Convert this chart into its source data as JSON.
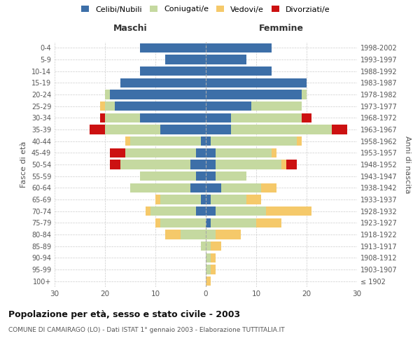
{
  "age_groups": [
    "100+",
    "95-99",
    "90-94",
    "85-89",
    "80-84",
    "75-79",
    "70-74",
    "65-69",
    "60-64",
    "55-59",
    "50-54",
    "45-49",
    "40-44",
    "35-39",
    "30-34",
    "25-29",
    "20-24",
    "15-19",
    "10-14",
    "5-9",
    "0-4"
  ],
  "birth_years": [
    "≤ 1902",
    "1903-1907",
    "1908-1912",
    "1913-1917",
    "1918-1922",
    "1923-1927",
    "1928-1932",
    "1933-1937",
    "1938-1942",
    "1943-1947",
    "1948-1952",
    "1953-1957",
    "1958-1962",
    "1963-1967",
    "1968-1972",
    "1973-1977",
    "1978-1982",
    "1983-1987",
    "1988-1992",
    "1993-1997",
    "1998-2002"
  ],
  "colors": {
    "celibi": "#3d6fa8",
    "coniugati": "#c5d9a0",
    "vedovi": "#f5c96a",
    "divorziati": "#cc1111"
  },
  "maschi": {
    "celibi": [
      0,
      0,
      0,
      0,
      0,
      0,
      2,
      1,
      3,
      2,
      3,
      2,
      1,
      9,
      13,
      18,
      19,
      17,
      13,
      8,
      13
    ],
    "coniugati": [
      0,
      0,
      0,
      1,
      5,
      9,
      9,
      8,
      12,
      11,
      14,
      14,
      14,
      11,
      7,
      2,
      1,
      0,
      0,
      0,
      0
    ],
    "vedovi": [
      0,
      0,
      0,
      0,
      3,
      1,
      1,
      1,
      0,
      0,
      0,
      0,
      1,
      0,
      0,
      1,
      0,
      0,
      0,
      0,
      0
    ],
    "divorziati": [
      0,
      0,
      0,
      0,
      0,
      0,
      0,
      0,
      0,
      0,
      2,
      3,
      0,
      3,
      1,
      0,
      0,
      0,
      0,
      0,
      0
    ]
  },
  "femmine": {
    "celibi": [
      0,
      0,
      0,
      0,
      0,
      1,
      2,
      1,
      3,
      2,
      2,
      2,
      1,
      5,
      5,
      9,
      19,
      20,
      13,
      8,
      13
    ],
    "coniugati": [
      0,
      1,
      1,
      1,
      2,
      9,
      10,
      7,
      8,
      6,
      13,
      11,
      17,
      20,
      14,
      10,
      1,
      0,
      0,
      0,
      0
    ],
    "vedovi": [
      1,
      1,
      1,
      2,
      5,
      5,
      9,
      3,
      3,
      0,
      1,
      1,
      1,
      0,
      0,
      0,
      0,
      0,
      0,
      0,
      0
    ],
    "divorziati": [
      0,
      0,
      0,
      0,
      0,
      0,
      0,
      0,
      0,
      0,
      2,
      0,
      0,
      3,
      2,
      0,
      0,
      0,
      0,
      0,
      0
    ]
  },
  "xlim": 30,
  "title": "Popolazione per età, sesso e stato civile - 2003",
  "subtitle": "COMUNE DI CAMAIRAGO (LO) - Dati ISTAT 1° gennaio 2003 - Elaborazione TUTTITALIA.IT",
  "ylabel_left": "Fasce di età",
  "ylabel_right": "Anni di nascita",
  "xlabel_maschi": "Maschi",
  "xlabel_femmine": "Femmine",
  "legend_labels": [
    "Celibi/Nubili",
    "Coniugati/e",
    "Vedovi/e",
    "Divorziati/e"
  ],
  "background_color": "#ffffff",
  "grid_color": "#cccccc"
}
